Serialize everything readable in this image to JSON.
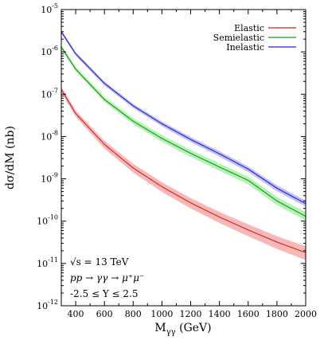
{
  "chart_data": {
    "type": "line",
    "xlabel": "M",
    "xlabel_sub": "γγ",
    "xlabel_unit": "(GeV)",
    "ylabel": "dσ/dM (nb)",
    "xlim": [
      300,
      2000
    ],
    "ylim": [
      1e-12,
      1e-05
    ],
    "y_scale": "log",
    "grid": false,
    "legend_position": "top-right",
    "x_ticks": [
      400,
      600,
      800,
      1000,
      1200,
      1400,
      1600,
      1800,
      2000
    ],
    "x_tick_labels": [
      "400",
      "600",
      "800",
      "1000",
      "1200",
      "1400",
      "1600",
      "1800",
      "2000"
    ],
    "y_ticks": [
      {
        "value": 1e-12,
        "exp": "-12"
      },
      {
        "value": 1e-11,
        "exp": "-11"
      },
      {
        "value": 1e-10,
        "exp": "-10"
      },
      {
        "value": 1e-09,
        "exp": "-9"
      },
      {
        "value": 1e-08,
        "exp": "-8"
      },
      {
        "value": 1e-07,
        "exp": "-7"
      },
      {
        "value": 1e-06,
        "exp": "-6"
      },
      {
        "value": 1e-05,
        "exp": "-5"
      }
    ],
    "y_tick_base": "10",
    "series": [
      {
        "name": "Elastic",
        "color": "#cc2222",
        "band_color": "#f5a0a0",
        "x": [
          300,
          400,
          600,
          800,
          1000,
          1200,
          1400,
          1600,
          1800,
          2000
        ],
        "y": [
          1.3e-07,
          3.5e-08,
          6.5e-09,
          1.8e-09,
          6.5e-10,
          2.7e-10,
          1.25e-10,
          6.2e-11,
          3.2e-11,
          1.8e-11
        ],
        "band_low": [
          1.1e-07,
          2.9e-08,
          5.2e-09,
          1.4e-09,
          4.9e-10,
          2e-10,
          9e-11,
          4.4e-11,
          2.2e-11,
          1.2e-11
        ],
        "band_high": [
          1.5e-07,
          4.1e-08,
          7.9e-09,
          2.25e-09,
          8.3e-10,
          3.5e-10,
          1.65e-10,
          8.4e-11,
          4.4e-11,
          2.55e-11
        ]
      },
      {
        "name": "Semielastic",
        "color": "#119911",
        "band_color": "#99ee99",
        "x": [
          300,
          400,
          600,
          800,
          1000,
          1200,
          1400,
          1600,
          1800,
          2000
        ],
        "y": [
          1.3e-06,
          3.9e-07,
          7.5e-08,
          2.3e-08,
          9e-09,
          4e-09,
          1.9e-09,
          9.2e-10,
          3e-10,
          1.3e-10
        ],
        "band_low": [
          1.15e-06,
          3.45e-07,
          6.5e-08,
          1.95e-08,
          7.5e-09,
          3.3e-09,
          1.55e-09,
          7.4e-10,
          2.4e-10,
          1.03e-10
        ],
        "band_high": [
          1.45e-06,
          4.4e-07,
          8.6e-08,
          2.7e-08,
          1.07e-08,
          4.8e-09,
          2.3e-09,
          1.12e-09,
          3.7e-10,
          1.63e-10
        ]
      },
      {
        "name": "Inelastic",
        "color": "#2222cc",
        "band_color": "#aaaaf5",
        "x": [
          300,
          400,
          600,
          800,
          1000,
          1200,
          1400,
          1600,
          1800,
          2000
        ],
        "y": [
          3e-06,
          9e-07,
          1.8e-07,
          5.3e-08,
          2e-08,
          8.5e-09,
          3.9e-09,
          1.7e-09,
          6e-10,
          2.6e-10
        ],
        "band_low": [
          2.7e-06,
          8.1e-07,
          1.6e-07,
          4.7e-08,
          1.75e-08,
          7.4e-09,
          3.35e-09,
          1.45e-09,
          5.1e-10,
          2.2e-10
        ],
        "band_high": [
          3.3e-06,
          9.9e-07,
          2e-07,
          5.9e-08,
          2.25e-08,
          9.7e-09,
          4.5e-09,
          1.95e-09,
          7e-10,
          3.05e-10
        ]
      }
    ],
    "annotations": [
      {
        "text": "√s = 13 TeV"
      },
      {
        "text": "pp → γγ → μ⁺μ⁻"
      },
      {
        "text": "-2.5 ≤ Y ≤ 2.5"
      }
    ]
  }
}
